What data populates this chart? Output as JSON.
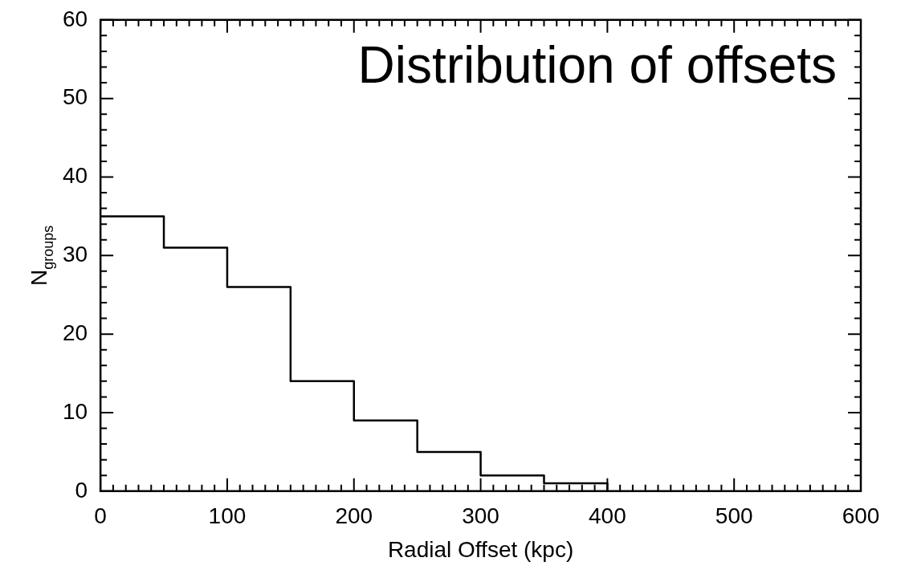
{
  "chart_data": {
    "type": "histogram",
    "title": "Distribution of offsets",
    "xlabel": "Radial Offset (kpc)",
    "ylabel": "N$_{groups}$",
    "bins": [
      0,
      50,
      100,
      150,
      200,
      250,
      300,
      350,
      400
    ],
    "values": [
      35,
      31,
      26,
      14,
      9,
      5,
      2,
      1
    ],
    "color": "#000000",
    "xlim": [
      0,
      600
    ],
    "xticks": [
      0,
      {
        "value": 10,
        "label": null
      },
      {
        "value": 20,
        "label": null
      },
      {
        "value": 30,
        "label": null
      },
      {
        "value": 40,
        "label": null
      },
      {
        "value": 50,
        "label": null
      },
      {
        "value": 60,
        "label": null
      },
      {
        "value": 70,
        "label": null
      },
      {
        "value": 80,
        "label": null
      },
      {
        "value": 90,
        "label": null
      },
      100,
      {
        "value": 110,
        "label": null
      },
      {
        "value": 120,
        "label": null
      },
      {
        "value": 130,
        "label": null
      },
      {
        "value": 140,
        "label": null
      },
      {
        "value": 150,
        "label": null
      },
      {
        "value": 160,
        "label": null
      },
      {
        "value": 170,
        "label": null
      },
      {
        "value": 180,
        "label": null
      },
      {
        "value": 190,
        "label": null
      },
      200,
      {
        "value": 210,
        "label": null
      },
      {
        "value": 220,
        "label": null
      },
      {
        "value": 230,
        "label": null
      },
      {
        "value": 240,
        "label": null
      },
      {
        "value": 250,
        "label": null
      },
      {
        "value": 260,
        "label": null
      },
      {
        "value": 270,
        "label": null
      },
      {
        "value": 280,
        "label": null
      },
      {
        "value": 290,
        "label": null
      },
      300,
      {
        "value": 310,
        "label": null
      },
      {
        "value": 320,
        "label": null
      },
      {
        "value": 330,
        "label": null
      },
      {
        "value": 340,
        "label": null
      },
      {
        "value": 350,
        "label": null
      },
      {
        "value": 360,
        "label": null
      },
      {
        "value": 370,
        "label": null
      },
      {
        "value": 380,
        "label": null
      },
      {
        "value": 390,
        "label": null
      },
      400,
      {
        "value": 410,
        "label": null
      },
      {
        "value": 420,
        "label": null
      },
      {
        "value": 430,
        "label": null
      },
      {
        "value": 440,
        "label": null
      },
      {
        "value": 450,
        "label": null
      },
      {
        "value": 460,
        "label": null
      },
      {
        "value": 470,
        "label": null
      },
      {
        "value": 480,
        "label": null
      },
      {
        "value": 490,
        "label": null
      },
      500,
      {
        "value": 510,
        "label": null
      },
      {
        "value": 520,
        "label": null
      },
      {
        "value": 530,
        "label": null
      },
      {
        "value": 540,
        "label": null
      },
      {
        "value": 550,
        "label": null
      },
      {
        "value": 560,
        "label": null
      },
      {
        "value": 570,
        "label": null
      },
      {
        "value": 580,
        "label": null
      },
      {
        "value": 590,
        "label": null
      },
      600
    ],
    "ylim": [
      0,
      60
    ],
    "yticks": [
      0,
      {
        "value": 2,
        "label": null
      },
      {
        "value": 4,
        "label": null
      },
      {
        "value": 6,
        "label": null
      },
      {
        "value": 8,
        "label": null
      },
      10,
      {
        "value": 12,
        "label": null
      },
      {
        "value": 14,
        "label": null
      },
      {
        "value": 16,
        "label": null
      },
      {
        "value": 18,
        "label": null
      },
      20,
      {
        "value": 22,
        "label": null
      },
      {
        "value": 24,
        "label": null
      },
      {
        "value": 26,
        "label": null
      },
      {
        "value": 28,
        "label": null
      },
      30,
      {
        "value": 32,
        "label": null
      },
      {
        "value": 34,
        "label": null
      },
      {
        "value": 36,
        "label": null
      },
      {
        "value": 38,
        "label": null
      },
      40,
      {
        "value": 42,
        "label": null
      },
      {
        "value": 44,
        "label": null
      },
      {
        "value": 46,
        "label": null
      },
      {
        "value": 48,
        "label": null
      },
      50,
      {
        "value": 52,
        "label": null
      },
      {
        "value": 54,
        "label": null
      },
      {
        "value": 56,
        "label": null
      },
      {
        "value": 58,
        "label": null
      },
      60
    ]
  }
}
